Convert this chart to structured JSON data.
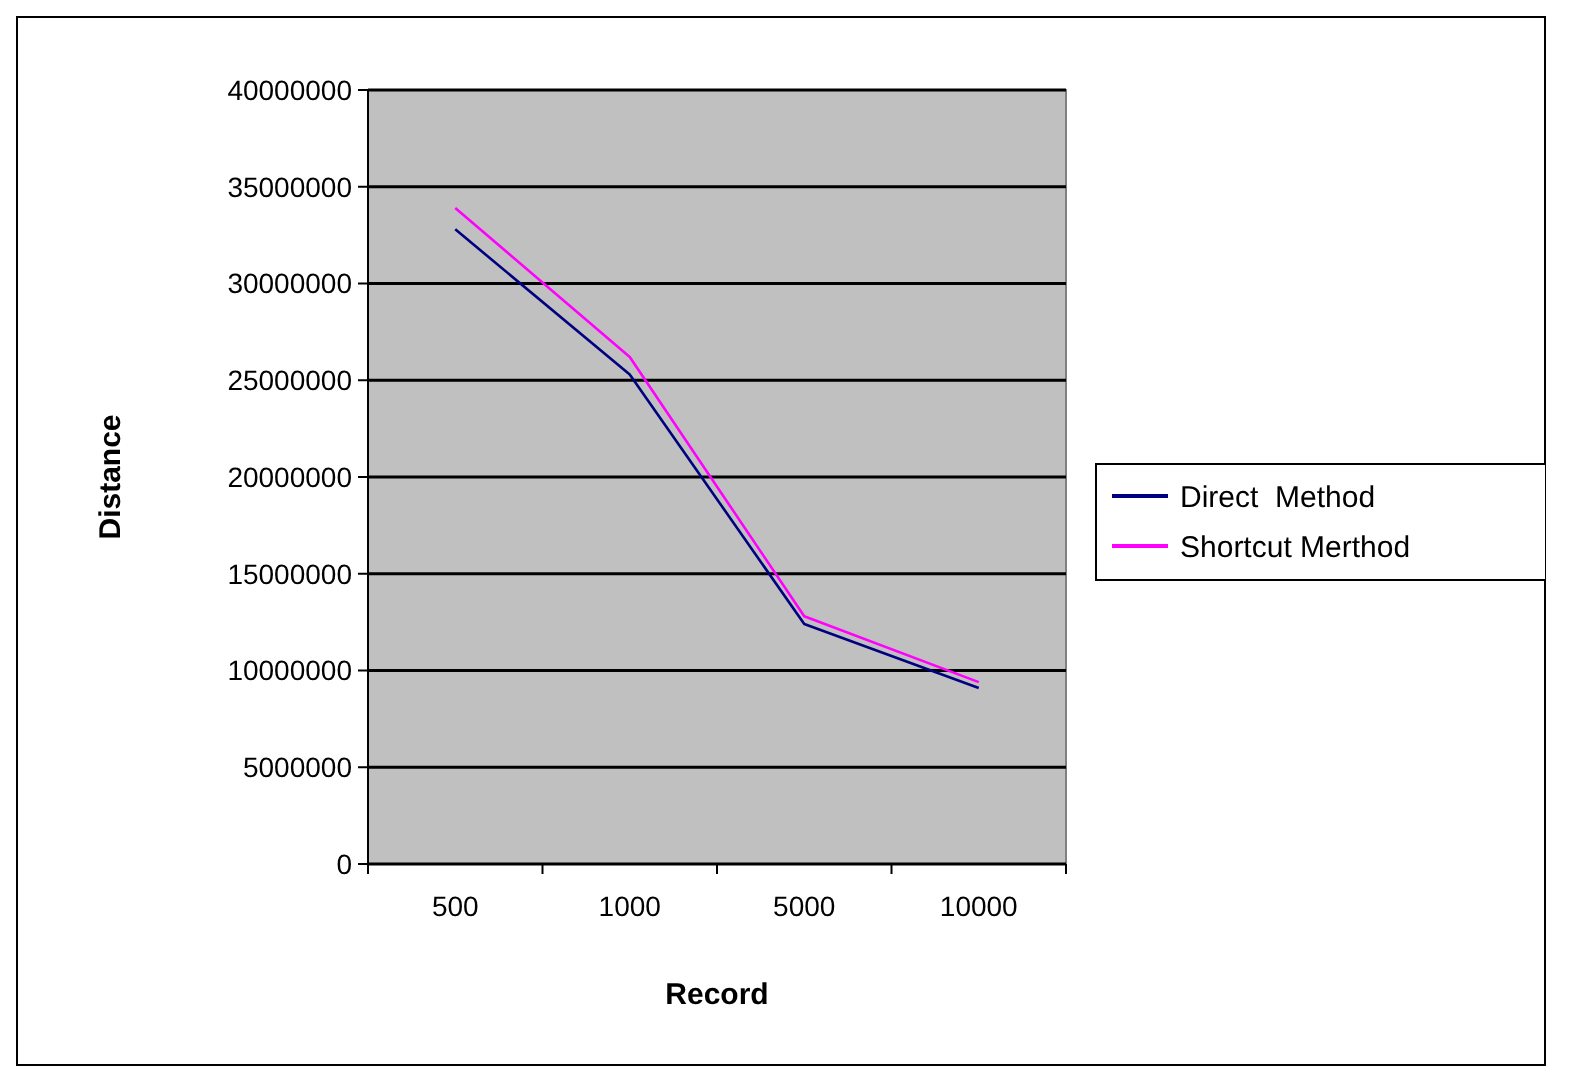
{
  "chart_data": {
    "type": "line",
    "xlabel": "Record",
    "ylabel": "Distance",
    "categories": [
      "500",
      "1000",
      "5000",
      "10000"
    ],
    "series": [
      {
        "name": "Direct  Method",
        "color": "#000080",
        "values": [
          32800000,
          25300000,
          12400000,
          9100000
        ]
      },
      {
        "name": "Shortcut Merthod",
        "color": "#ff00ff",
        "values": [
          33900000,
          26200000,
          12800000,
          9400000
        ]
      }
    ],
    "ylim": [
      0,
      40000000
    ],
    "yticks": [
      0,
      5000000,
      10000000,
      15000000,
      20000000,
      25000000,
      30000000,
      35000000,
      40000000
    ],
    "grid": "y",
    "legend": "right",
    "marker": "none",
    "line_style": "solid"
  }
}
